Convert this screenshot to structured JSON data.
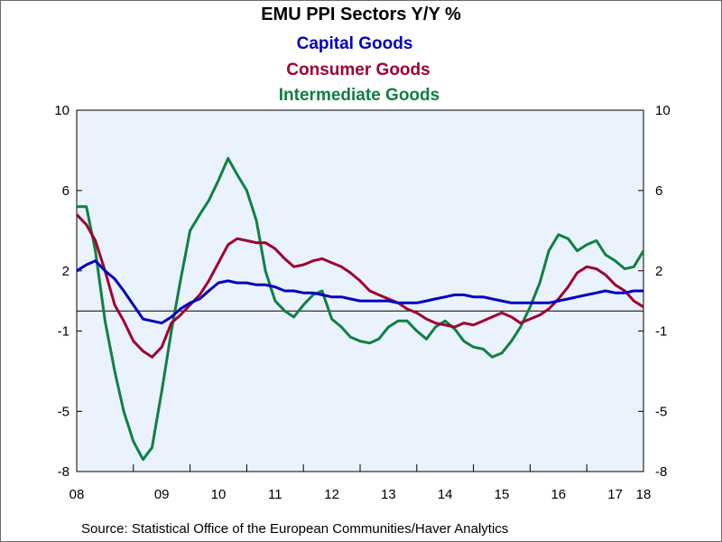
{
  "chart_data": {
    "type": "line",
    "title": "EMU PPI Sectors Y/Y %",
    "source": "Source:  Statistical Office of the European Communities/Haver Analytics",
    "ylim": [
      -8,
      10
    ],
    "y_ticks": [
      10,
      6,
      2,
      -1,
      -5,
      -8
    ],
    "x_ticks": [
      "08",
      "09",
      "10",
      "11",
      "12",
      "13",
      "14",
      "15",
      "16",
      "17",
      "18"
    ],
    "grid": false,
    "zero_line": true,
    "legend_placement": "top-center",
    "background_color": "#eaf2fe",
    "series": [
      {
        "name": "Capital Goods",
        "color": "#0000c0",
        "points": [
          [
            2008.0,
            2.0
          ],
          [
            2008.17,
            2.3
          ],
          [
            2008.33,
            2.5
          ],
          [
            2008.5,
            2.0
          ],
          [
            2008.67,
            1.6
          ],
          [
            2008.83,
            1.0
          ],
          [
            2009.0,
            0.3
          ],
          [
            2009.17,
            -0.4
          ],
          [
            2009.33,
            -0.5
          ],
          [
            2009.5,
            -0.6
          ],
          [
            2009.67,
            -0.3
          ],
          [
            2009.83,
            0.1
          ],
          [
            2010.0,
            0.4
          ],
          [
            2010.17,
            0.6
          ],
          [
            2010.33,
            1.0
          ],
          [
            2010.5,
            1.4
          ],
          [
            2010.67,
            1.5
          ],
          [
            2010.83,
            1.4
          ],
          [
            2011.0,
            1.4
          ],
          [
            2011.17,
            1.3
          ],
          [
            2011.33,
            1.3
          ],
          [
            2011.5,
            1.2
          ],
          [
            2011.67,
            1.0
          ],
          [
            2011.83,
            1.0
          ],
          [
            2012.0,
            0.9
          ],
          [
            2012.17,
            0.9
          ],
          [
            2012.33,
            0.8
          ],
          [
            2012.5,
            0.7
          ],
          [
            2012.67,
            0.7
          ],
          [
            2012.83,
            0.6
          ],
          [
            2013.0,
            0.5
          ],
          [
            2013.17,
            0.5
          ],
          [
            2013.33,
            0.5
          ],
          [
            2013.5,
            0.5
          ],
          [
            2013.67,
            0.4
          ],
          [
            2013.83,
            0.4
          ],
          [
            2014.0,
            0.4
          ],
          [
            2014.17,
            0.5
          ],
          [
            2014.33,
            0.6
          ],
          [
            2014.5,
            0.7
          ],
          [
            2014.67,
            0.8
          ],
          [
            2014.83,
            0.8
          ],
          [
            2015.0,
            0.7
          ],
          [
            2015.17,
            0.7
          ],
          [
            2015.33,
            0.6
          ],
          [
            2015.5,
            0.5
          ],
          [
            2015.67,
            0.4
          ],
          [
            2015.83,
            0.4
          ],
          [
            2016.0,
            0.4
          ],
          [
            2016.17,
            0.4
          ],
          [
            2016.33,
            0.4
          ],
          [
            2016.5,
            0.5
          ],
          [
            2016.67,
            0.6
          ],
          [
            2016.83,
            0.7
          ],
          [
            2017.0,
            0.8
          ],
          [
            2017.17,
            0.9
          ],
          [
            2017.33,
            1.0
          ],
          [
            2017.5,
            0.9
          ],
          [
            2017.67,
            0.9
          ],
          [
            2017.83,
            1.0
          ],
          [
            2018.0,
            1.0
          ]
        ]
      },
      {
        "name": "Consumer Goods",
        "color": "#a00030",
        "points": [
          [
            2008.0,
            4.8
          ],
          [
            2008.17,
            4.3
          ],
          [
            2008.33,
            3.5
          ],
          [
            2008.5,
            2.0
          ],
          [
            2008.67,
            0.3
          ],
          [
            2008.83,
            -0.5
          ],
          [
            2009.0,
            -1.5
          ],
          [
            2009.17,
            -2.0
          ],
          [
            2009.33,
            -2.3
          ],
          [
            2009.5,
            -1.8
          ],
          [
            2009.67,
            -0.6
          ],
          [
            2009.83,
            -0.2
          ],
          [
            2010.0,
            0.3
          ],
          [
            2010.17,
            0.8
          ],
          [
            2010.33,
            1.5
          ],
          [
            2010.5,
            2.4
          ],
          [
            2010.67,
            3.3
          ],
          [
            2010.83,
            3.6
          ],
          [
            2011.0,
            3.5
          ],
          [
            2011.17,
            3.4
          ],
          [
            2011.33,
            3.4
          ],
          [
            2011.5,
            3.1
          ],
          [
            2011.67,
            2.6
          ],
          [
            2011.83,
            2.2
          ],
          [
            2012.0,
            2.3
          ],
          [
            2012.17,
            2.5
          ],
          [
            2012.33,
            2.6
          ],
          [
            2012.5,
            2.4
          ],
          [
            2012.67,
            2.2
          ],
          [
            2012.83,
            1.9
          ],
          [
            2013.0,
            1.5
          ],
          [
            2013.17,
            1.0
          ],
          [
            2013.33,
            0.8
          ],
          [
            2013.5,
            0.6
          ],
          [
            2013.67,
            0.4
          ],
          [
            2013.83,
            0.1
          ],
          [
            2014.0,
            -0.1
          ],
          [
            2014.17,
            -0.4
          ],
          [
            2014.33,
            -0.6
          ],
          [
            2014.5,
            -0.7
          ],
          [
            2014.67,
            -0.8
          ],
          [
            2014.83,
            -0.6
          ],
          [
            2015.0,
            -0.7
          ],
          [
            2015.17,
            -0.5
          ],
          [
            2015.33,
            -0.3
          ],
          [
            2015.5,
            -0.1
          ],
          [
            2015.67,
            -0.3
          ],
          [
            2015.83,
            -0.6
          ],
          [
            2016.0,
            -0.4
          ],
          [
            2016.17,
            -0.2
          ],
          [
            2016.33,
            0.1
          ],
          [
            2016.5,
            0.6
          ],
          [
            2016.67,
            1.2
          ],
          [
            2016.83,
            1.9
          ],
          [
            2017.0,
            2.2
          ],
          [
            2017.17,
            2.1
          ],
          [
            2017.33,
            1.8
          ],
          [
            2017.5,
            1.3
          ],
          [
            2017.67,
            1.0
          ],
          [
            2017.83,
            0.5
          ],
          [
            2018.0,
            0.2
          ]
        ]
      },
      {
        "name": "Intermediate Goods",
        "color": "#108040",
        "points": [
          [
            2008.0,
            5.2
          ],
          [
            2008.17,
            5.2
          ],
          [
            2008.33,
            3.0
          ],
          [
            2008.5,
            -0.5
          ],
          [
            2008.67,
            -3.0
          ],
          [
            2008.83,
            -5.0
          ],
          [
            2009.0,
            -6.5
          ],
          [
            2009.17,
            -7.4
          ],
          [
            2009.33,
            -6.8
          ],
          [
            2009.5,
            -4.0
          ],
          [
            2009.67,
            -1.0
          ],
          [
            2009.83,
            1.5
          ],
          [
            2010.0,
            4.0
          ],
          [
            2010.17,
            4.8
          ],
          [
            2010.33,
            5.5
          ],
          [
            2010.5,
            6.5
          ],
          [
            2010.67,
            7.6
          ],
          [
            2010.83,
            6.8
          ],
          [
            2011.0,
            6.0
          ],
          [
            2011.17,
            4.5
          ],
          [
            2011.33,
            2.0
          ],
          [
            2011.5,
            0.5
          ],
          [
            2011.67,
            0.0
          ],
          [
            2011.83,
            -0.3
          ],
          [
            2012.0,
            0.3
          ],
          [
            2012.17,
            0.8
          ],
          [
            2012.33,
            1.0
          ],
          [
            2012.5,
            -0.4
          ],
          [
            2012.67,
            -0.8
          ],
          [
            2012.83,
            -1.3
          ],
          [
            2013.0,
            -1.5
          ],
          [
            2013.17,
            -1.6
          ],
          [
            2013.33,
            -1.4
          ],
          [
            2013.5,
            -0.8
          ],
          [
            2013.67,
            -0.5
          ],
          [
            2013.83,
            -0.5
          ],
          [
            2014.0,
            -1.0
          ],
          [
            2014.17,
            -1.4
          ],
          [
            2014.33,
            -0.8
          ],
          [
            2014.5,
            -0.5
          ],
          [
            2014.67,
            -0.9
          ],
          [
            2014.83,
            -1.5
          ],
          [
            2015.0,
            -1.8
          ],
          [
            2015.17,
            -1.9
          ],
          [
            2015.33,
            -2.3
          ],
          [
            2015.5,
            -2.1
          ],
          [
            2015.67,
            -1.5
          ],
          [
            2015.83,
            -0.8
          ],
          [
            2016.0,
            0.2
          ],
          [
            2016.17,
            1.4
          ],
          [
            2016.33,
            3.0
          ],
          [
            2016.5,
            3.8
          ],
          [
            2016.67,
            3.6
          ],
          [
            2016.83,
            3.0
          ],
          [
            2017.0,
            3.3
          ],
          [
            2017.17,
            3.5
          ],
          [
            2017.33,
            2.8
          ],
          [
            2017.5,
            2.5
          ],
          [
            2017.67,
            2.1
          ],
          [
            2017.83,
            2.2
          ],
          [
            2018.0,
            3.0
          ]
        ]
      }
    ]
  }
}
